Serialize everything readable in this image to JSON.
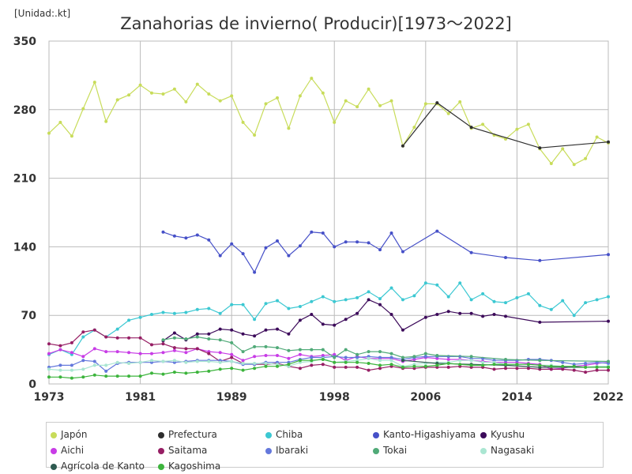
{
  "chart_data": {
    "type": "line",
    "title": "Zanahorias de invierno( Producir)[1973～2022]",
    "unit_label": "[Unidad:.kt]",
    "xlim": [
      1973,
      2022
    ],
    "ylim": [
      0,
      350
    ],
    "x_ticks": [
      1973,
      1981,
      1989,
      1998,
      2006,
      2014,
      2022
    ],
    "y_ticks": [
      0,
      70,
      140,
      210,
      280,
      350
    ],
    "grid": true,
    "legend_position": "bottom",
    "series": [
      {
        "name": "Japón",
        "color": "#c8dc5a",
        "x": [
          1973,
          1974,
          1975,
          1976,
          1977,
          1978,
          1979,
          1980,
          1981,
          1982,
          1983,
          1984,
          1985,
          1986,
          1987,
          1988,
          1989,
          1990,
          1991,
          1992,
          1993,
          1994,
          1995,
          1996,
          1997,
          1998,
          1999,
          2000,
          2001,
          2002,
          2003,
          2004,
          2005,
          2006,
          2007,
          2008,
          2009,
          2010,
          2011,
          2012,
          2013,
          2014,
          2015,
          2016,
          2017,
          2018,
          2019,
          2020,
          2021,
          2022
        ],
        "values": [
          256,
          267,
          253,
          281,
          308,
          268,
          290,
          295,
          305,
          297,
          296,
          301,
          288,
          306,
          296,
          289,
          294,
          267,
          254,
          286,
          292,
          261,
          294,
          312,
          297,
          267,
          289,
          283,
          301,
          284,
          289,
          243,
          262,
          286,
          286,
          276,
          288,
          261,
          265,
          254,
          250,
          260,
          265,
          240,
          225,
          240,
          224,
          230,
          252,
          246
        ]
      },
      {
        "name": "Prefectura",
        "color": "#2e2e2e",
        "x": [
          2004,
          2007,
          2010,
          2016,
          2022
        ],
        "values": [
          243,
          287,
          262,
          241,
          247
        ]
      },
      {
        "name": "Chiba",
        "color": "#3cc8d2",
        "x": [
          1973,
          1974,
          1975,
          1976,
          1977,
          1978,
          1979,
          1980,
          1981,
          1982,
          1983,
          1984,
          1985,
          1986,
          1987,
          1988,
          1989,
          1990,
          1991,
          1992,
          1993,
          1994,
          1995,
          1996,
          1997,
          1998,
          1999,
          2000,
          2001,
          2002,
          2003,
          2004,
          2005,
          2006,
          2007,
          2008,
          2009,
          2010,
          2011,
          2012,
          2013,
          2014,
          2015,
          2016,
          2017,
          2018,
          2019,
          2020,
          2021,
          2022
        ],
        "values": [
          30,
          35,
          30,
          48,
          55,
          48,
          56,
          65,
          68,
          71,
          73,
          72,
          73,
          76,
          77,
          72,
          81,
          81,
          66,
          82,
          85,
          77,
          79,
          84,
          89,
          84,
          86,
          88,
          94,
          87,
          98,
          86,
          90,
          103,
          101,
          89,
          103,
          86,
          92,
          84,
          83,
          88,
          92,
          80,
          76,
          85,
          70,
          83,
          86,
          89
        ]
      },
      {
        "name": "Kanto-Higashiyama",
        "color": "#4650c8",
        "x": [
          1983,
          1984,
          1985,
          1986,
          1987,
          1988,
          1989,
          1990,
          1991,
          1992,
          1993,
          1994,
          1995,
          1996,
          1997,
          1998,
          1999,
          2000,
          2001,
          2002,
          2003,
          2004,
          2007,
          2010,
          2013,
          2016,
          2022
        ],
        "values": [
          155,
          151,
          149,
          152,
          147,
          131,
          143,
          133,
          114,
          139,
          146,
          131,
          141,
          155,
          154,
          140,
          145,
          145,
          144,
          137,
          154,
          135,
          156,
          134,
          129,
          126,
          132
        ]
      },
      {
        "name": "Kyushu",
        "color": "#3c0a5a",
        "x": [
          1983,
          1984,
          1985,
          1986,
          1987,
          1988,
          1989,
          1990,
          1991,
          1992,
          1993,
          1994,
          1995,
          1996,
          1997,
          1998,
          1999,
          2000,
          2001,
          2002,
          2003,
          2004,
          2006,
          2007,
          2008,
          2009,
          2010,
          2011,
          2012,
          2013,
          2016,
          2022
        ],
        "values": [
          44,
          52,
          45,
          51,
          51,
          56,
          55,
          51,
          49,
          55,
          56,
          51,
          65,
          71,
          61,
          60,
          66,
          72,
          86,
          81,
          71,
          55,
          68,
          71,
          74,
          72,
          72,
          69,
          71,
          69,
          63,
          64
        ]
      },
      {
        "name": "Aichi",
        "color": "#c83ce6",
        "x": [
          1973,
          1974,
          1975,
          1976,
          1977,
          1978,
          1979,
          1980,
          1981,
          1982,
          1983,
          1984,
          1985,
          1986,
          1987,
          1988,
          1989,
          1990,
          1991,
          1992,
          1993,
          1994,
          1995,
          1996,
          1997,
          1998,
          1999,
          2000,
          2001,
          2002,
          2003,
          2004,
          2005,
          2006,
          2007,
          2008,
          2009,
          2010,
          2011,
          2012,
          2013,
          2014,
          2015,
          2016,
          2017,
          2018,
          2019,
          2020,
          2021,
          2022
        ],
        "values": [
          31,
          35,
          32,
          28,
          36,
          33,
          33,
          32,
          31,
          31,
          32,
          34,
          32,
          36,
          33,
          32,
          30,
          24,
          28,
          29,
          29,
          26,
          30,
          28,
          29,
          30,
          24,
          28,
          26,
          26,
          26,
          23,
          25,
          27,
          26,
          25,
          25,
          24,
          23,
          22,
          22,
          22,
          21,
          20,
          15,
          16,
          18,
          19,
          21,
          22
        ]
      },
      {
        "name": "Saitama",
        "color": "#961e64",
        "x": [
          1973,
          1974,
          1975,
          1976,
          1977,
          1978,
          1979,
          1980,
          1981,
          1982,
          1983,
          1984,
          1985,
          1986,
          1987,
          1988,
          1989,
          1990,
          1991,
          1992,
          1993,
          1994,
          1995,
          1996,
          1997,
          1998,
          1999,
          2000,
          2001,
          2002,
          2003,
          2004,
          2005,
          2006,
          2007,
          2008,
          2009,
          2010,
          2011,
          2012,
          2013,
          2014,
          2015,
          2016,
          2017,
          2018,
          2019,
          2020,
          2021,
          2022
        ],
        "values": [
          41,
          39,
          42,
          53,
          55,
          48,
          47,
          47,
          47,
          40,
          41,
          37,
          36,
          36,
          31,
          23,
          27,
          21,
          20,
          20,
          21,
          18,
          16,
          19,
          20,
          17,
          17,
          17,
          14,
          16,
          18,
          16,
          16,
          17,
          17,
          17,
          18,
          17,
          17,
          15,
          16,
          16,
          16,
          15,
          15,
          15,
          14,
          12,
          14,
          14
        ]
      },
      {
        "name": "Ibaraki",
        "color": "#6478dc",
        "x": [
          1973,
          1974,
          1975,
          1976,
          1977,
          1978,
          1979,
          1980,
          1981,
          1982,
          1983,
          1984,
          1985,
          1986,
          1987,
          1988,
          1989,
          1990,
          1991,
          1992,
          1993,
          1994,
          1995,
          1996,
          1997,
          1998,
          1999,
          2000,
          2001,
          2002,
          2003,
          2004,
          2005,
          2006,
          2007,
          2008,
          2009,
          2010,
          2011,
          2012,
          2013,
          2014,
          2015,
          2016,
          2017,
          2018,
          2019,
          2020,
          2021,
          2022
        ],
        "values": [
          17,
          19,
          19,
          24,
          23,
          13,
          21,
          22,
          22,
          22,
          23,
          22,
          23,
          24,
          24,
          24,
          23,
          20,
          20,
          22,
          22,
          22,
          25,
          27,
          27,
          28,
          27,
          27,
          28,
          27,
          27,
          25,
          27,
          28,
          28,
          28,
          28,
          26,
          26,
          24,
          24,
          24,
          25,
          25,
          24,
          22,
          20,
          21,
          22,
          21
        ]
      },
      {
        "name": "Tokai",
        "color": "#50aa78",
        "x": [
          1983,
          1984,
          1985,
          1986,
          1987,
          1988,
          1989,
          1990,
          1991,
          1992,
          1993,
          1994,
          1995,
          1996,
          1997,
          1998,
          1999,
          2000,
          2001,
          2002,
          2003,
          2004,
          2005,
          2006,
          2007,
          2010,
          2013,
          2016,
          2022
        ],
        "values": [
          45,
          47,
          46,
          48,
          46,
          45,
          42,
          33,
          38,
          38,
          37,
          34,
          35,
          35,
          35,
          27,
          35,
          30,
          33,
          33,
          31,
          27,
          28,
          31,
          29,
          28,
          25,
          24,
          23
        ]
      },
      {
        "name": "Nagasaki",
        "color": "#aae6d2",
        "x": [
          1973,
          1974,
          1975,
          1976,
          1977,
          1978,
          1979,
          1980,
          1981,
          1982,
          1983,
          1984,
          1985,
          1986,
          1987,
          1988,
          1989,
          1990,
          1991,
          1992,
          1993,
          1994,
          1995,
          1996,
          1997,
          1998,
          1999,
          2000,
          2001,
          2002,
          2003,
          2004,
          2005,
          2006,
          2007,
          2008,
          2009,
          2010,
          2011,
          2012,
          2013,
          2014,
          2015,
          2016,
          2017,
          2018,
          2019,
          2020,
          2021,
          2022
        ],
        "values": [
          15,
          14,
          14,
          15,
          19,
          19,
          22,
          21,
          22,
          24,
          23,
          24,
          22,
          23,
          23,
          22,
          23,
          21,
          21,
          21,
          20,
          18,
          22,
          23,
          26,
          22,
          23,
          24,
          26,
          24,
          24,
          18,
          20,
          21,
          22,
          22,
          24,
          24,
          22,
          22,
          20,
          20,
          20,
          19,
          19,
          18,
          17,
          17,
          18,
          18
        ]
      },
      {
        "name": "Agrícola de Kanto",
        "color": "#2e5a50",
        "x": [
          2004,
          2007,
          2010,
          2013,
          2016,
          2022
        ],
        "values": [
          24,
          21,
          20,
          19,
          17,
          17
        ]
      },
      {
        "name": "Kagoshima",
        "color": "#3cb43c",
        "x": [
          1973,
          1974,
          1975,
          1976,
          1977,
          1978,
          1979,
          1980,
          1981,
          1982,
          1983,
          1984,
          1985,
          1986,
          1987,
          1988,
          1989,
          1990,
          1991,
          1992,
          1993,
          1994,
          1995,
          1996,
          1997,
          1998,
          1999,
          2000,
          2001,
          2002,
          2003,
          2004,
          2005,
          2006,
          2007,
          2008,
          2009,
          2010,
          2011,
          2012,
          2013,
          2014,
          2015,
          2016,
          2017,
          2018,
          2019,
          2020,
          2021,
          2022
        ],
        "values": [
          7,
          7,
          6,
          7,
          9,
          8,
          8,
          8,
          8,
          11,
          10,
          12,
          11,
          12,
          13,
          15,
          16,
          14,
          16,
          18,
          18,
          20,
          24,
          24,
          25,
          22,
          22,
          22,
          21,
          19,
          20,
          17,
          18,
          18,
          19,
          21,
          20,
          19,
          19,
          20,
          20,
          20,
          20,
          19,
          18,
          18,
          18,
          17,
          17,
          17
        ]
      }
    ]
  }
}
